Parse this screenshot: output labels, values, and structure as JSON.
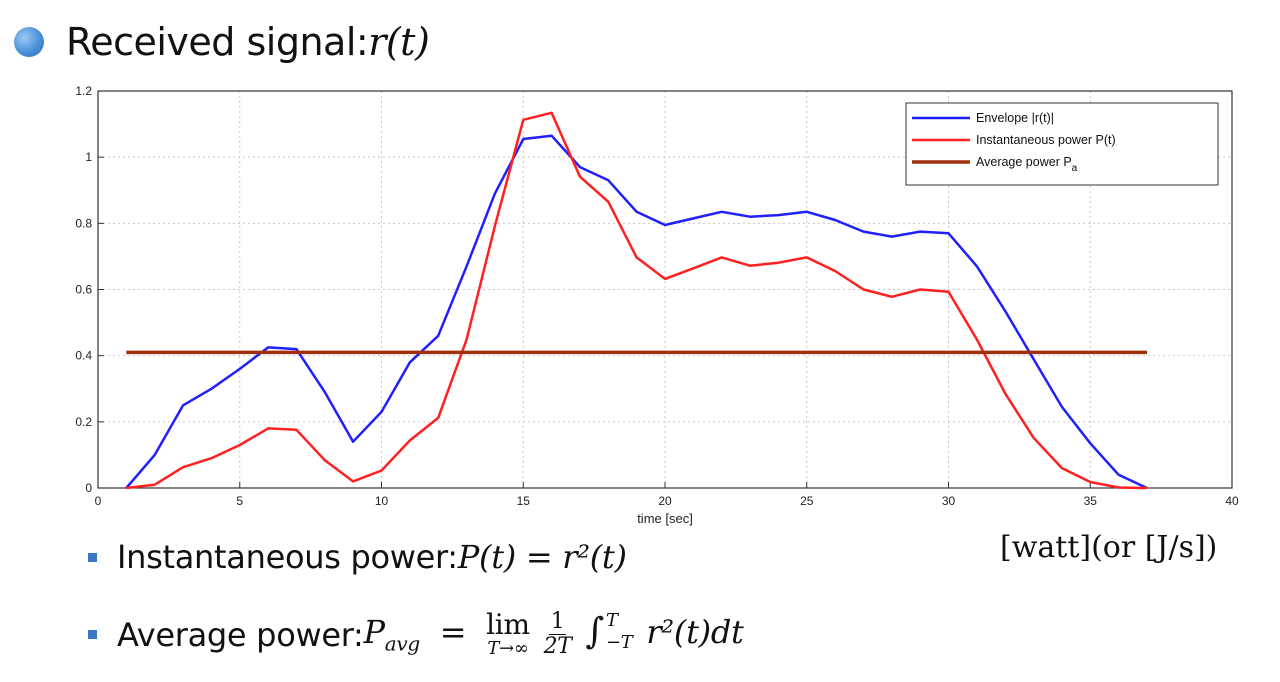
{
  "heading": {
    "text": "Received signal: ",
    "math": "r(t)"
  },
  "unit_note": "[watt](or [J/s])",
  "bullets": [
    {
      "label": "Instantaneous power: ",
      "formula": "P(t) = r²(t)"
    },
    {
      "label": "Average power: ",
      "formula_lhs": "P",
      "formula_sub": "avg",
      "lim": "lim",
      "lim_sub": "T→∞",
      "frac_num": "1",
      "frac_den": "2T",
      "int_upper": "T",
      "int_lower": "−T",
      "integrand": "r²(t)dt"
    }
  ],
  "chart_data": {
    "type": "line",
    "xlabel": "time [sec]",
    "ylabel": "",
    "xlim": [
      0,
      40
    ],
    "ylim": [
      0,
      1.2
    ],
    "xticks": [
      0,
      5,
      10,
      15,
      20,
      25,
      30,
      35,
      40
    ],
    "yticks": [
      0,
      0.2,
      0.4,
      0.6,
      0.8,
      1,
      1.2
    ],
    "xtick_labels": [
      "0",
      "5",
      "10",
      "15",
      "20",
      "25",
      "30",
      "35",
      "40"
    ],
    "ytick_labels": [
      "0",
      "0.2",
      "0.4",
      "0.6",
      "0.8",
      "1",
      "1.2"
    ],
    "grid": true,
    "legend_position": "top-right",
    "series": [
      {
        "name": "Envelope |r(t)|",
        "color": "#1f1fff",
        "x": [
          1,
          2,
          3,
          4,
          5,
          6,
          7,
          8,
          9,
          10,
          11,
          12,
          13,
          14,
          15,
          16,
          17,
          18,
          19,
          20,
          21,
          22,
          23,
          24,
          25,
          26,
          27,
          28,
          29,
          30,
          31,
          32,
          33,
          34,
          35,
          36,
          37
        ],
        "values": [
          0.0,
          0.1,
          0.25,
          0.3,
          0.36,
          0.425,
          0.42,
          0.29,
          0.14,
          0.23,
          0.38,
          0.46,
          0.67,
          0.89,
          1.055,
          1.065,
          0.97,
          0.93,
          0.835,
          0.795,
          0.815,
          0.835,
          0.82,
          0.825,
          0.835,
          0.81,
          0.775,
          0.76,
          0.775,
          0.77,
          0.67,
          0.535,
          0.39,
          0.245,
          0.135,
          0.04,
          0.0
        ]
      },
      {
        "name": "Instantaneous power P(t)",
        "color": "#ff2020",
        "x": [
          1,
          2,
          3,
          4,
          5,
          6,
          7,
          8,
          9,
          10,
          11,
          12,
          13,
          14,
          15,
          16,
          17,
          18,
          19,
          20,
          21,
          22,
          23,
          24,
          25,
          26,
          27,
          28,
          29,
          30,
          31,
          32,
          33,
          34,
          35,
          36,
          37
        ],
        "values": [
          0.0,
          0.01,
          0.063,
          0.09,
          0.13,
          0.18,
          0.176,
          0.084,
          0.02,
          0.053,
          0.144,
          0.212,
          0.449,
          0.792,
          1.113,
          1.134,
          0.941,
          0.865,
          0.697,
          0.632,
          0.664,
          0.697,
          0.672,
          0.681,
          0.697,
          0.656,
          0.6,
          0.578,
          0.6,
          0.593,
          0.449,
          0.286,
          0.152,
          0.06,
          0.018,
          0.0016,
          0.0
        ]
      },
      {
        "name": "Average power P_a",
        "color": "#a0300a",
        "x": [
          1,
          37
        ],
        "values": [
          0.41,
          0.41
        ]
      }
    ]
  }
}
